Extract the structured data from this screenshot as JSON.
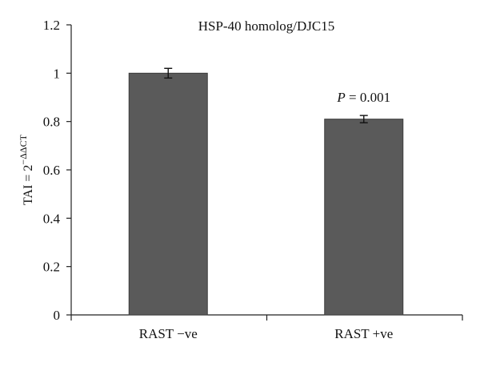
{
  "chart_data": {
    "type": "bar",
    "title": "HSP-40 homolog/DJC15",
    "ylabel_main": "TAI = 2",
    "ylabel_sup": "−ΔΔCT",
    "xlabel": "",
    "categories": [
      "RAST −ve",
      "RAST +ve"
    ],
    "series": [
      {
        "values": [
          1.0,
          0.81
        ],
        "errors": [
          0.02,
          0.015
        ]
      }
    ],
    "ylim": [
      0,
      1.2
    ],
    "yticks": [
      "0",
      "0.2",
      "0.4",
      "0.6",
      "0.8",
      "1",
      "1.2"
    ],
    "grid": false,
    "annotations": [
      {
        "category_index": 1,
        "p_symbol": "P",
        "p_text": " = 0.001"
      }
    ],
    "colors": {
      "bar": "#5a5a5a",
      "bar_edge": "#3c3c3c",
      "axis": "#222222"
    }
  }
}
